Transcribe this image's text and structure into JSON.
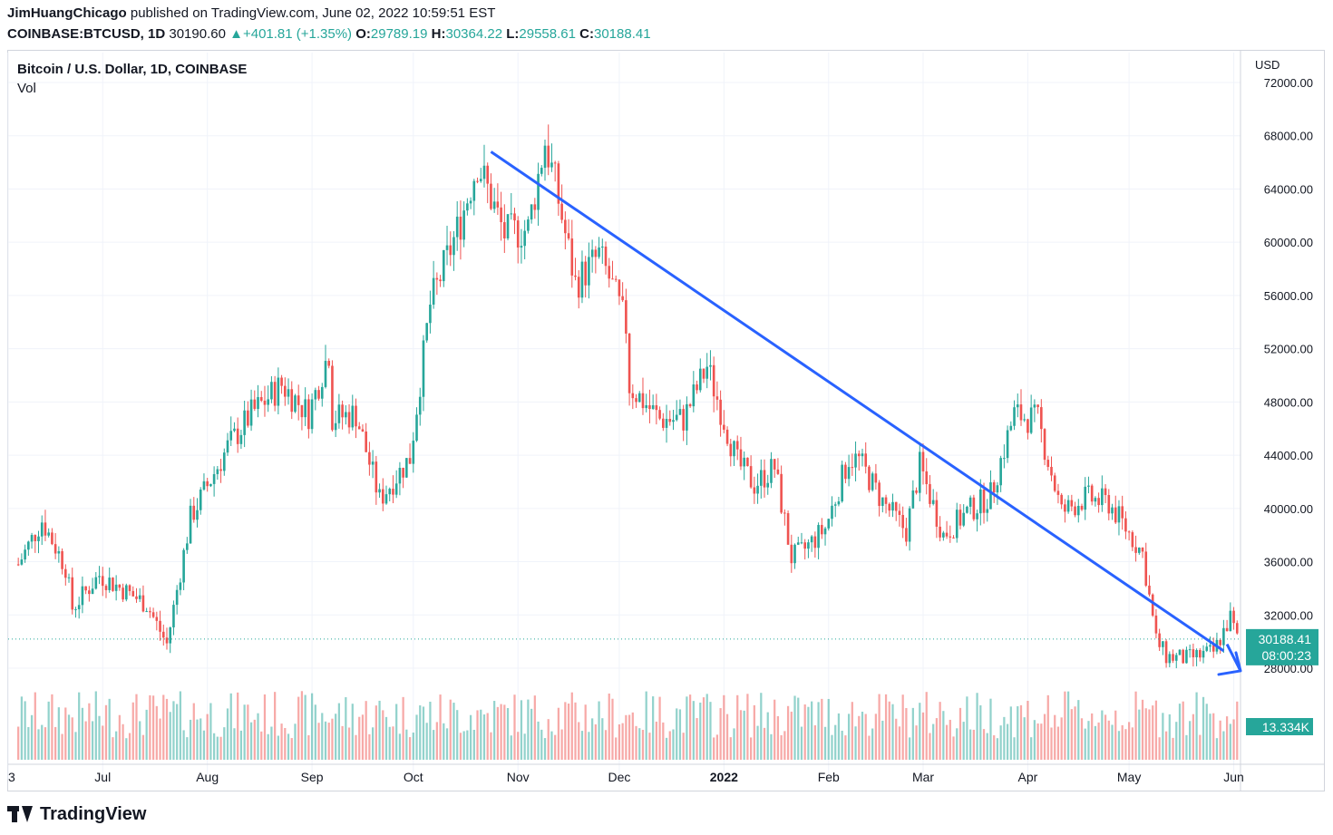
{
  "header": {
    "author": "JimHuangChicago",
    "published": "published on TradingView.com, June 02, 2022 10:59:51 EST",
    "symbol": "COINBASE:BTCUSD, 1D",
    "last": "30190.60",
    "change": "+401.81 (+1.35%)",
    "o_label": "O:",
    "o_value": "29789.19",
    "h_label": "H:",
    "h_value": "30364.22",
    "l_label": "L:",
    "l_value": "29558.61",
    "c_label": "C:",
    "c_value": "30188.41"
  },
  "legend": {
    "title": "Bitcoin / U.S. Dollar, 1D, COINBASE",
    "volume_label": "Vol"
  },
  "axis": {
    "currency": "USD"
  },
  "price_tag": {
    "price": "30188.41",
    "countdown": "08:00:23"
  },
  "volume_tag": {
    "value": "13.334K"
  },
  "footer": {
    "brand": "TradingView"
  },
  "colors": {
    "up": "#26a69a",
    "down": "#ef5350",
    "trendline": "#2962ff",
    "grid": "#f0f3fa"
  },
  "chart_data": {
    "type": "candlestick",
    "x_tick_labels": [
      "3",
      "Jul",
      "Aug",
      "Sep",
      "Oct",
      "Nov",
      "Dec",
      "2022",
      "Feb",
      "Mar",
      "Apr",
      "May",
      "Jun"
    ],
    "x_tick_dates": [
      "2021-06-03",
      "2021-07-01",
      "2021-08-01",
      "2021-09-01",
      "2021-10-01",
      "2021-11-01",
      "2021-12-01",
      "2022-01-01",
      "2022-02-01",
      "2022-03-01",
      "2022-04-01",
      "2022-05-01",
      "2022-06-01"
    ],
    "y_ticks": [
      28000,
      32000,
      36000,
      40000,
      44000,
      48000,
      52000,
      56000,
      60000,
      64000,
      68000,
      72000
    ],
    "y_tick_labels": [
      "28000.00",
      "32000.00",
      "36000.00",
      "40000.00",
      "44000.00",
      "48000.00",
      "52000.00",
      "56000.00",
      "60000.00",
      "64000.00",
      "68000.00",
      "72000.00"
    ],
    "y_range": [
      23600,
      73300
    ],
    "x_range": [
      "2021-06-03",
      "2022-06-03"
    ],
    "series": [
      {
        "date": "2021-06-06",
        "close": 35800
      },
      {
        "date": "2021-06-13",
        "close": 39100
      },
      {
        "date": "2021-06-20",
        "close": 35600
      },
      {
        "date": "2021-06-22",
        "close": 32500
      },
      {
        "date": "2021-06-30",
        "close": 35000
      },
      {
        "date": "2021-07-07",
        "close": 33900
      },
      {
        "date": "2021-07-14",
        "close": 32800
      },
      {
        "date": "2021-07-20",
        "close": 29800
      },
      {
        "date": "2021-07-27",
        "close": 39300
      },
      {
        "date": "2021-08-07",
        "close": 44600
      },
      {
        "date": "2021-08-14",
        "close": 47100
      },
      {
        "date": "2021-08-23",
        "close": 49300
      },
      {
        "date": "2021-08-31",
        "close": 47100
      },
      {
        "date": "2021-09-06",
        "close": 51800
      },
      {
        "date": "2021-09-07",
        "close": 46800
      },
      {
        "date": "2021-09-14",
        "close": 47100
      },
      {
        "date": "2021-09-21",
        "close": 40700
      },
      {
        "date": "2021-09-30",
        "close": 43800
      },
      {
        "date": "2021-10-06",
        "close": 55300
      },
      {
        "date": "2021-10-15",
        "close": 61600
      },
      {
        "date": "2021-10-20",
        "close": 66000
      },
      {
        "date": "2021-10-28",
        "close": 60600
      },
      {
        "date": "2021-11-04",
        "close": 61000
      },
      {
        "date": "2021-11-09",
        "close": 67600
      },
      {
        "date": "2021-11-12",
        "close": 64400
      },
      {
        "date": "2021-11-18",
        "close": 56900
      },
      {
        "date": "2021-11-25",
        "close": 59000
      },
      {
        "date": "2021-11-28",
        "close": 57300
      },
      {
        "date": "2021-12-03",
        "close": 53700
      },
      {
        "date": "2021-12-04",
        "close": 49200
      },
      {
        "date": "2021-12-13",
        "close": 46700
      },
      {
        "date": "2021-12-20",
        "close": 46700
      },
      {
        "date": "2021-12-27",
        "close": 50700
      },
      {
        "date": "2022-01-05",
        "close": 43400
      },
      {
        "date": "2022-01-10",
        "close": 41800
      },
      {
        "date": "2022-01-16",
        "close": 43100
      },
      {
        "date": "2022-01-21",
        "close": 36300
      },
      {
        "date": "2022-01-24",
        "close": 36700
      },
      {
        "date": "2022-01-31",
        "close": 38500
      },
      {
        "date": "2022-02-07",
        "close": 43800
      },
      {
        "date": "2022-02-10",
        "close": 43600
      },
      {
        "date": "2022-02-17",
        "close": 40500
      },
      {
        "date": "2022-02-24",
        "close": 38300
      },
      {
        "date": "2022-02-28",
        "close": 43200
      },
      {
        "date": "2022-03-07",
        "close": 38000
      },
      {
        "date": "2022-03-14",
        "close": 39700
      },
      {
        "date": "2022-03-21",
        "close": 41000
      },
      {
        "date": "2022-03-28",
        "close": 47100
      },
      {
        "date": "2022-04-04",
        "close": 46600
      },
      {
        "date": "2022-04-11",
        "close": 39700
      },
      {
        "date": "2022-04-18",
        "close": 40800
      },
      {
        "date": "2022-04-25",
        "close": 40400
      },
      {
        "date": "2022-05-05",
        "close": 36600
      },
      {
        "date": "2022-05-09",
        "close": 30100
      },
      {
        "date": "2022-05-12",
        "close": 28900
      },
      {
        "date": "2022-05-18",
        "close": 28700
      },
      {
        "date": "2022-05-26",
        "close": 29200
      },
      {
        "date": "2022-05-31",
        "close": 31800
      },
      {
        "date": "2022-06-02",
        "close": 30188
      }
    ],
    "trendline": {
      "start": {
        "date": "2021-10-24",
        "price": 66800
      },
      "end": {
        "date": "2022-05-29",
        "price": 29300
      }
    },
    "forecast_arrow": {
      "from": {
        "date": "2022-05-30",
        "price": 29800
      },
      "to": {
        "date": "2022-06-03",
        "price": 27800
      }
    },
    "last_price_line": 30188.41
  }
}
